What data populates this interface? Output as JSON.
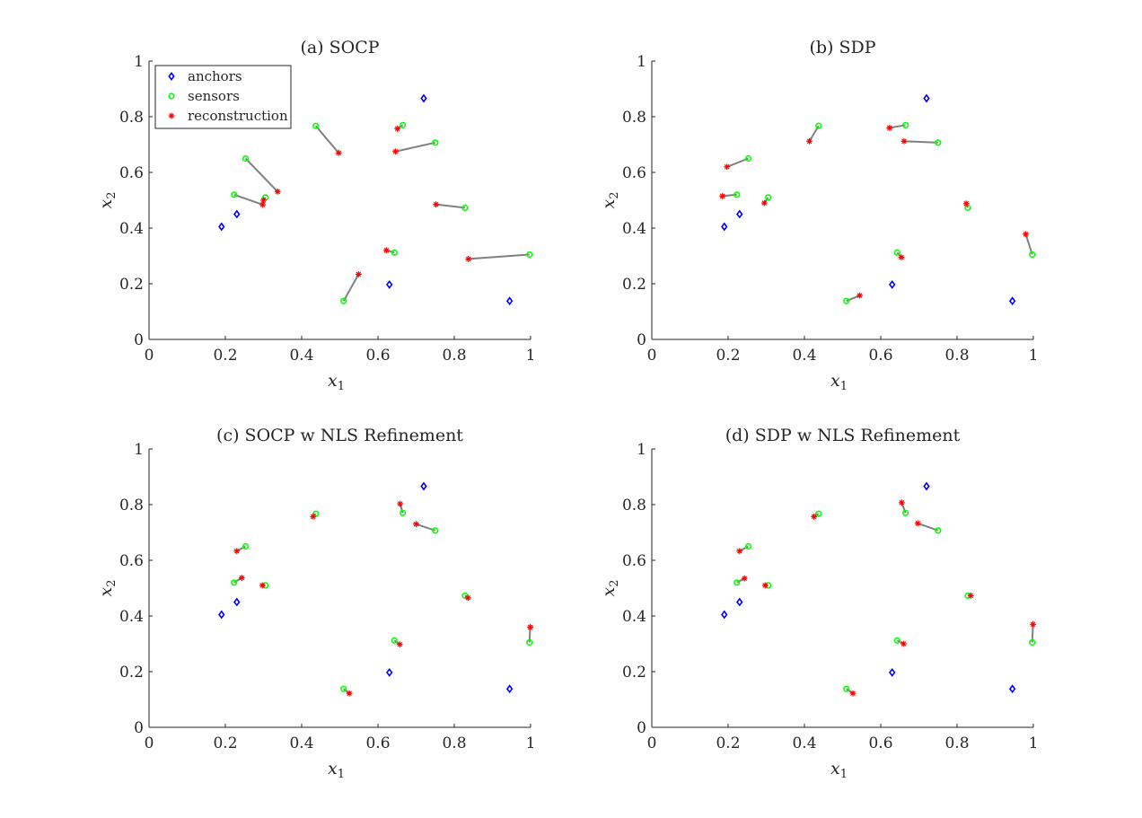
{
  "colors": {
    "anchor": "#0000ff",
    "sensor": "#00ff00",
    "reconstruction": "#ff0000",
    "link": "#808080",
    "axis": "#262626"
  },
  "chart_data": [
    {
      "type": "scatter",
      "title": "(a) SOCP",
      "xlabel": "x",
      "xlabel_sub": "1",
      "ylabel": "x",
      "ylabel_sub": "2",
      "xlim": [
        0,
        1
      ],
      "ylim": [
        0,
        1
      ],
      "xticks": [
        "0",
        "0.2",
        "0.4",
        "0.6",
        "0.8",
        "1"
      ],
      "yticks": [
        "0",
        "0.2",
        "0.4",
        "0.6",
        "0.8",
        "1"
      ],
      "legend": {
        "placement": "top-left",
        "entries": [
          "anchors",
          "sensors",
          "reconstruction"
        ]
      },
      "anchors": [
        [
          0.19,
          0.405
        ],
        [
          0.23,
          0.45
        ],
        [
          0.63,
          0.197
        ],
        [
          0.72,
          0.866
        ],
        [
          0.945,
          0.138
        ]
      ],
      "sensors": [
        [
          0.253,
          0.65
        ],
        [
          0.223,
          0.52
        ],
        [
          0.305,
          0.51
        ],
        [
          0.437,
          0.767
        ],
        [
          0.665,
          0.77
        ],
        [
          0.75,
          0.707
        ],
        [
          0.828,
          0.473
        ],
        [
          0.643,
          0.312
        ],
        [
          0.51,
          0.138
        ],
        [
          0.997,
          0.305
        ]
      ],
      "reconstruction": [
        [
          0.337,
          0.531
        ],
        [
          0.298,
          0.484
        ],
        [
          0.3,
          0.5
        ],
        [
          0.497,
          0.67
        ],
        [
          0.651,
          0.757
        ],
        [
          0.646,
          0.675
        ],
        [
          0.752,
          0.485
        ],
        [
          0.622,
          0.32
        ],
        [
          0.549,
          0.234
        ],
        [
          0.837,
          0.289
        ]
      ]
    },
    {
      "type": "scatter",
      "title": "(b) SDP",
      "xlabel": "x",
      "xlabel_sub": "1",
      "ylabel": "x",
      "ylabel_sub": "2",
      "xlim": [
        0,
        1
      ],
      "ylim": [
        0,
        1
      ],
      "xticks": [
        "0",
        "0.2",
        "0.4",
        "0.6",
        "0.8",
        "1"
      ],
      "yticks": [
        "0",
        "0.2",
        "0.4",
        "0.6",
        "0.8",
        "1"
      ],
      "anchors": [
        [
          0.19,
          0.405
        ],
        [
          0.23,
          0.45
        ],
        [
          0.63,
          0.197
        ],
        [
          0.72,
          0.866
        ],
        [
          0.945,
          0.138
        ]
      ],
      "sensors": [
        [
          0.253,
          0.65
        ],
        [
          0.223,
          0.52
        ],
        [
          0.305,
          0.51
        ],
        [
          0.437,
          0.767
        ],
        [
          0.665,
          0.77
        ],
        [
          0.75,
          0.707
        ],
        [
          0.828,
          0.473
        ],
        [
          0.643,
          0.312
        ],
        [
          0.51,
          0.138
        ],
        [
          0.997,
          0.305
        ]
      ],
      "reconstruction": [
        [
          0.197,
          0.62
        ],
        [
          0.185,
          0.515
        ],
        [
          0.295,
          0.49
        ],
        [
          0.413,
          0.712
        ],
        [
          0.623,
          0.76
        ],
        [
          0.661,
          0.712
        ],
        [
          0.824,
          0.488
        ],
        [
          0.654,
          0.295
        ],
        [
          0.545,
          0.158
        ],
        [
          0.98,
          0.378
        ]
      ]
    },
    {
      "type": "scatter",
      "title": "(c) SOCP w NLS Refinement",
      "xlabel": "x",
      "xlabel_sub": "1",
      "ylabel": "x",
      "ylabel_sub": "2",
      "xlim": [
        0,
        1
      ],
      "ylim": [
        0,
        1
      ],
      "xticks": [
        "0",
        "0.2",
        "0.4",
        "0.6",
        "0.8",
        "1"
      ],
      "yticks": [
        "0",
        "0.2",
        "0.4",
        "0.6",
        "0.8",
        "1"
      ],
      "anchors": [
        [
          0.19,
          0.405
        ],
        [
          0.23,
          0.45
        ],
        [
          0.63,
          0.197
        ],
        [
          0.72,
          0.866
        ],
        [
          0.945,
          0.138
        ]
      ],
      "sensors": [
        [
          0.253,
          0.65
        ],
        [
          0.223,
          0.52
        ],
        [
          0.305,
          0.51
        ],
        [
          0.437,
          0.767
        ],
        [
          0.665,
          0.77
        ],
        [
          0.75,
          0.707
        ],
        [
          0.828,
          0.473
        ],
        [
          0.643,
          0.312
        ],
        [
          0.51,
          0.138
        ],
        [
          0.997,
          0.305
        ]
      ],
      "reconstruction": [
        [
          0.23,
          0.633
        ],
        [
          0.243,
          0.537
        ],
        [
          0.297,
          0.51
        ],
        [
          0.43,
          0.757
        ],
        [
          0.658,
          0.803
        ],
        [
          0.7,
          0.73
        ],
        [
          0.836,
          0.465
        ],
        [
          0.657,
          0.298
        ],
        [
          0.525,
          0.122
        ],
        [
          0.999,
          0.36
        ]
      ]
    },
    {
      "type": "scatter",
      "title": "(d) SDP w NLS Refinement",
      "xlabel": "x",
      "xlabel_sub": "1",
      "ylabel": "x",
      "ylabel_sub": "2",
      "xlim": [
        0,
        1
      ],
      "ylim": [
        0,
        1
      ],
      "xticks": [
        "0",
        "0.2",
        "0.4",
        "0.6",
        "0.8",
        "1"
      ],
      "yticks": [
        "0",
        "0.2",
        "0.4",
        "0.6",
        "0.8",
        "1"
      ],
      "anchors": [
        [
          0.19,
          0.405
        ],
        [
          0.23,
          0.45
        ],
        [
          0.63,
          0.197
        ],
        [
          0.72,
          0.866
        ],
        [
          0.945,
          0.138
        ]
      ],
      "sensors": [
        [
          0.253,
          0.65
        ],
        [
          0.223,
          0.52
        ],
        [
          0.305,
          0.51
        ],
        [
          0.437,
          0.767
        ],
        [
          0.665,
          0.77
        ],
        [
          0.75,
          0.707
        ],
        [
          0.828,
          0.473
        ],
        [
          0.643,
          0.312
        ],
        [
          0.51,
          0.138
        ],
        [
          0.997,
          0.305
        ]
      ],
      "reconstruction": [
        [
          0.23,
          0.633
        ],
        [
          0.243,
          0.535
        ],
        [
          0.297,
          0.51
        ],
        [
          0.425,
          0.757
        ],
        [
          0.655,
          0.807
        ],
        [
          0.697,
          0.733
        ],
        [
          0.836,
          0.473
        ],
        [
          0.66,
          0.3
        ],
        [
          0.527,
          0.122
        ],
        [
          0.999,
          0.37
        ]
      ]
    }
  ]
}
